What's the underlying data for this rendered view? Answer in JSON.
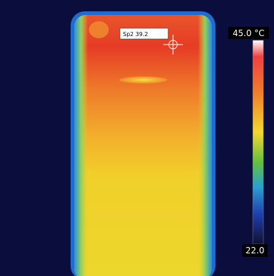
{
  "spot_label": "Sp2 39.2",
  "scale": {
    "max_label": "45.0 °C",
    "min_label": "22.0"
  }
}
